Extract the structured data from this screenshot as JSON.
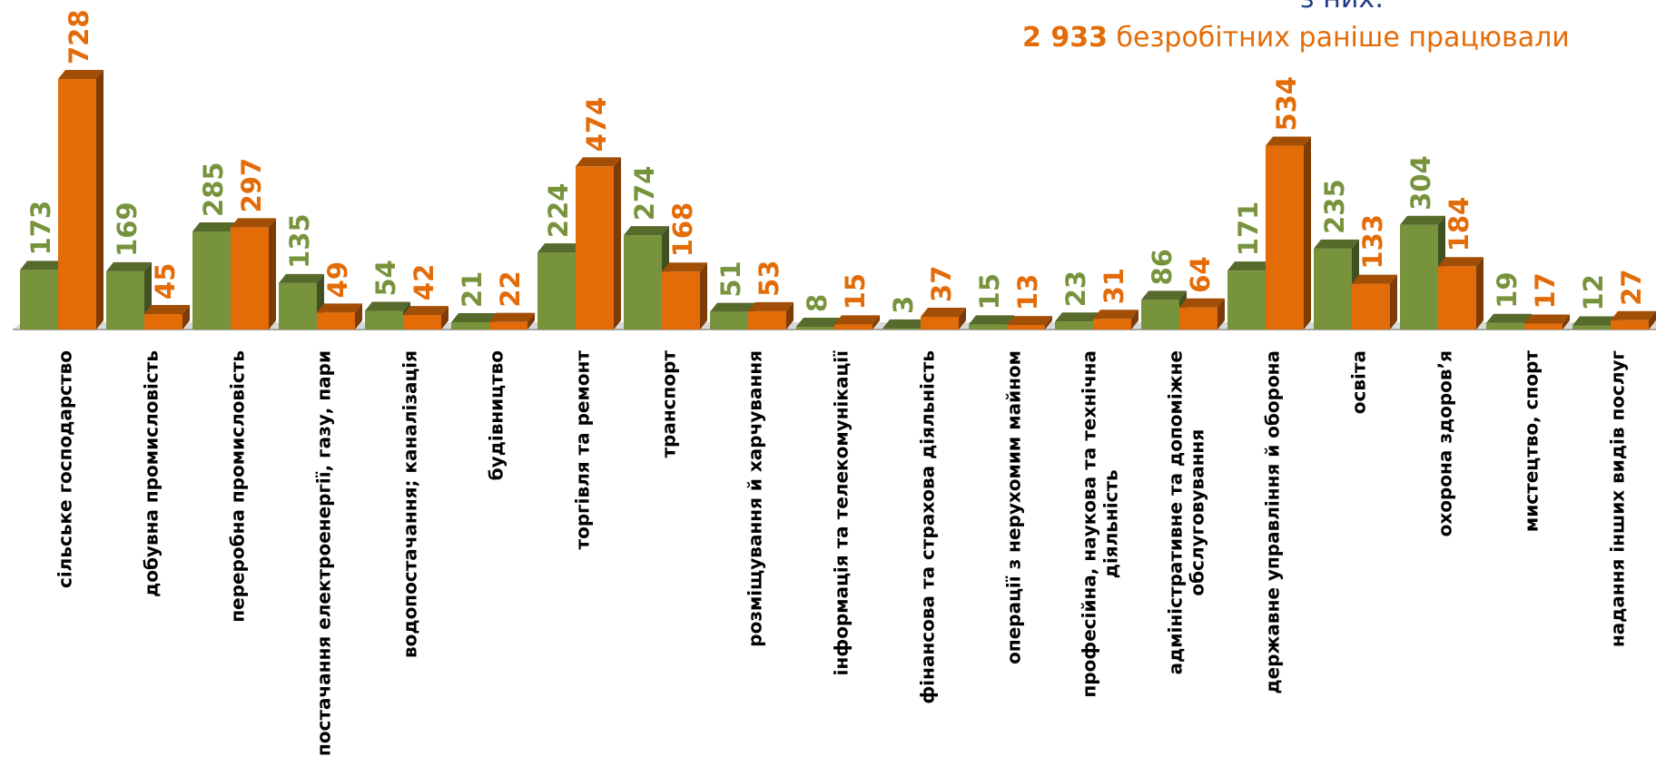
{
  "chart_data": {
    "type": "bar3d",
    "note_line1": "з них:",
    "note_number": "2 933",
    "note_text": "безробітних раніше працювали",
    "categories": [
      "сільське господарство",
      "добувна промисловість",
      "переробна промисловість",
      "постачання електроенергії, газу, пари",
      "водопостачання; каналізація",
      "будівництво",
      "торгівля та ремонт",
      "транспорт",
      "розміщування й харчування",
      "інформація та телекомунікації",
      "фінансова та страхова діяльність",
      "операції з нерухомим майном",
      "професійна, наукова та технічна діяльність",
      "адміністративне та допоміжне обслуговування",
      "державне управління й оборона",
      "освіта",
      "охорона здоров’я",
      "мистецтво, спорт",
      "надання інших видів послуг"
    ],
    "series": [
      {
        "color": "#77933c",
        "values": [
          173,
          169,
          285,
          135,
          54,
          21,
          224,
          274,
          51,
          8,
          3,
          15,
          23,
          86,
          171,
          235,
          304,
          19,
          12
        ]
      },
      {
        "color": "#e36c09",
        "values": [
          728,
          45,
          297,
          49,
          42,
          22,
          474,
          168,
          53,
          15,
          37,
          13,
          31,
          64,
          534,
          133,
          184,
          17,
          27
        ]
      }
    ]
  }
}
